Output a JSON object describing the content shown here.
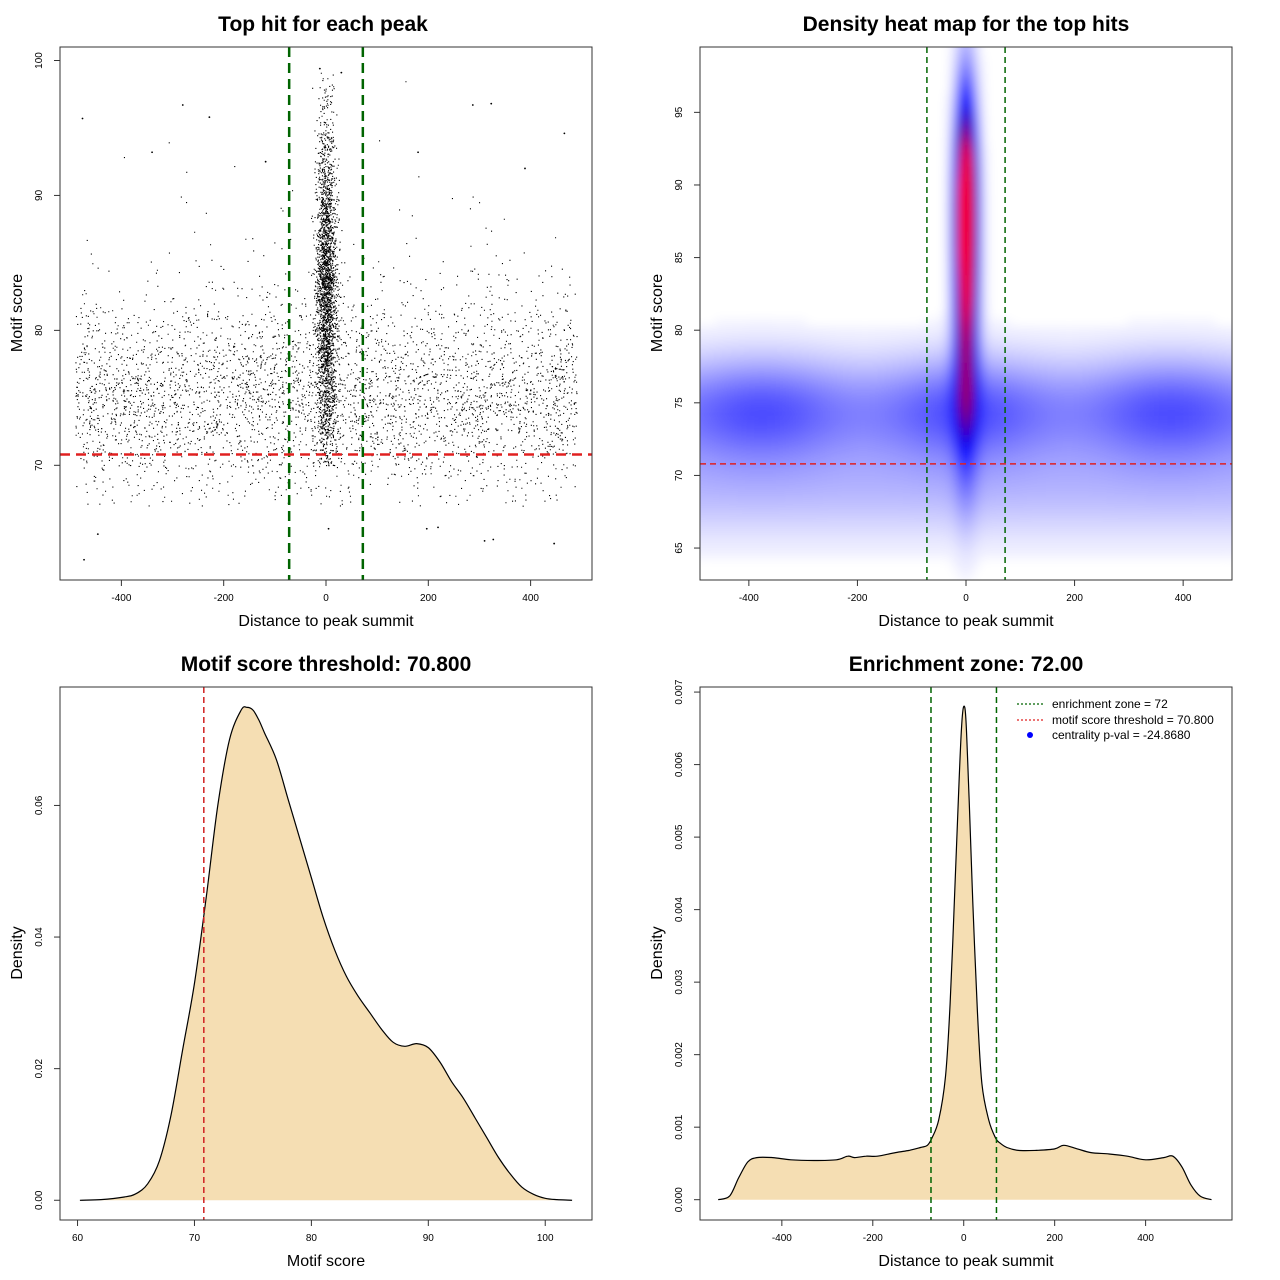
{
  "chart_data": [
    {
      "type": "scatter",
      "title": "Top hit for each peak",
      "xlabel": "Distance to peak summit",
      "ylabel": "Motif score",
      "xlim": [
        -520,
        520
      ],
      "ylim": [
        61.5,
        101
      ],
      "xticks": [
        -400,
        -200,
        0,
        200,
        400
      ],
      "yticks": [
        70,
        80,
        90,
        100
      ],
      "vlines": [
        -72,
        72
      ],
      "hline": 70.8,
      "colors": {
        "points": "#000000",
        "vlines": "#006400",
        "hline": "#e02020"
      },
      "point_model": {
        "background": {
          "n": 9000,
          "x_range": [
            -490,
            490
          ],
          "mean": 75,
          "sd": 3.6,
          "min": 67
        },
        "central": {
          "n": 5500,
          "x_sd": 10,
          "mean": 83,
          "sd": 6,
          "min": 70,
          "max": 99.3
        },
        "outliers": [
          {
            "x": -476,
            "y": 95.7
          },
          {
            "x": -280,
            "y": 96.7
          },
          {
            "x": -228,
            "y": 95.8
          },
          {
            "x": 287,
            "y": 96.7
          },
          {
            "x": 323,
            "y": 96.8
          },
          {
            "x": 466,
            "y": 94.6
          },
          {
            "x": -473,
            "y": 63.0
          },
          {
            "x": 197,
            "y": 65.3
          },
          {
            "x": 219,
            "y": 65.4
          },
          {
            "x": 310,
            "y": 64.4
          },
          {
            "x": 327,
            "y": 64.5
          },
          {
            "x": 446,
            "y": 64.2
          },
          {
            "x": -446,
            "y": 64.9
          },
          {
            "x": 30,
            "y": 99.1
          },
          {
            "x": -12,
            "y": 99.4
          },
          {
            "x": 5,
            "y": 65.3
          },
          {
            "x": -118,
            "y": 92.5
          },
          {
            "x": 180,
            "y": 93.2
          },
          {
            "x": -340,
            "y": 93.2
          },
          {
            "x": 389,
            "y": 92.0
          }
        ]
      }
    },
    {
      "type": "heatmap",
      "title": "Density heat map for the top hits",
      "xlabel": "Distance to peak summit",
      "ylabel": "Motif score",
      "xlim": [
        -490,
        490
      ],
      "ylim": [
        62.8,
        99.5
      ],
      "xticks": [
        -400,
        -200,
        0,
        200,
        400
      ],
      "yticks": [
        65,
        70,
        75,
        80,
        85,
        90,
        95
      ],
      "vlines": [
        -72,
        72
      ],
      "hline": 70.8,
      "colors": {
        "low": "#ffffff",
        "mid": "#0000ff",
        "high": "#ff0000",
        "vlines": "#006400",
        "hline": "#e02020"
      }
    },
    {
      "type": "area",
      "title": "Motif score threshold: 70.800",
      "xlabel": "Motif score",
      "ylabel": "Density",
      "xlim": [
        58.5,
        104
      ],
      "ylim": [
        -0.003,
        0.078
      ],
      "xticks": [
        60,
        70,
        80,
        90,
        100
      ],
      "yticks": [
        0.0,
        0.02,
        0.04,
        0.06
      ],
      "ytick_labels": [
        "0.00",
        "0.02",
        "0.04",
        "0.06"
      ],
      "vline": 70.8,
      "x": [
        60.2,
        62,
        64,
        65,
        66,
        67,
        68,
        69,
        70,
        71,
        72,
        73,
        74,
        74.5,
        75,
        75.5,
        76,
        77,
        78,
        79,
        80,
        81,
        82,
        83,
        84,
        85,
        86,
        87,
        88,
        89,
        90,
        91,
        92,
        93,
        94,
        95,
        96,
        97,
        98,
        99,
        100,
        101,
        102.3
      ],
      "values": [
        0.0,
        0.0001,
        0.0005,
        0.001,
        0.0025,
        0.006,
        0.013,
        0.023,
        0.033,
        0.046,
        0.06,
        0.07,
        0.0745,
        0.0749,
        0.0745,
        0.073,
        0.071,
        0.067,
        0.061,
        0.055,
        0.049,
        0.043,
        0.038,
        0.034,
        0.031,
        0.0285,
        0.026,
        0.024,
        0.0234,
        0.0238,
        0.0232,
        0.021,
        0.018,
        0.0155,
        0.0125,
        0.0095,
        0.0065,
        0.004,
        0.002,
        0.0009,
        0.0003,
        0.0001,
        0.0
      ],
      "colors": {
        "fill": "#f5deb3",
        "line": "#000000",
        "vline": "#d02020"
      }
    },
    {
      "type": "area",
      "title": "Enrichment zone: 72.00",
      "xlabel": "Distance to peak summit",
      "ylabel": "Density",
      "xlim": [
        -580,
        590
      ],
      "ylim": [
        -0.00028,
        0.00707
      ],
      "xticks": [
        -400,
        -200,
        0,
        200,
        400
      ],
      "yticks": [
        0,
        0.001,
        0.002,
        0.003,
        0.004,
        0.005,
        0.006,
        0.007
      ],
      "ytick_labels": [
        "0.000",
        "0.001",
        "0.002",
        "0.003",
        "0.004",
        "0.005",
        "0.006",
        "0.007"
      ],
      "vlines": [
        -72,
        72
      ],
      "x": [
        -540,
        -515,
        -495,
        -475,
        -455,
        -420,
        -380,
        -330,
        -280,
        -255,
        -240,
        -215,
        -190,
        -150,
        -120,
        -95,
        -80,
        -70,
        -55,
        -40,
        -30,
        -20,
        -12,
        -5,
        0,
        5,
        12,
        20,
        30,
        40,
        55,
        70,
        80,
        95,
        120,
        160,
        200,
        220,
        250,
        280,
        320,
        360,
        400,
        440,
        460,
        480,
        500,
        520,
        545
      ],
      "values": [
        0.0,
        5e-05,
        0.0003,
        0.00052,
        0.00058,
        0.00058,
        0.00055,
        0.00054,
        0.00055,
        0.0006,
        0.00058,
        0.0006,
        0.0006,
        0.00065,
        0.00068,
        0.00072,
        0.00075,
        0.00085,
        0.0011,
        0.0017,
        0.0027,
        0.0042,
        0.0055,
        0.0065,
        0.0068,
        0.0066,
        0.0055,
        0.0041,
        0.0026,
        0.0016,
        0.0011,
        0.00085,
        0.00078,
        0.00072,
        0.00068,
        0.00068,
        0.0007,
        0.00075,
        0.0007,
        0.00065,
        0.00063,
        0.0006,
        0.00055,
        0.00058,
        0.0006,
        0.00045,
        0.0002,
        5e-05,
        0.0
      ],
      "legend": [
        {
          "label": "enrichment zone = 72",
          "style": "dotted",
          "color": "#006400"
        },
        {
          "label": "motif score threshold = 70.800",
          "style": "dotted",
          "color": "#e02020"
        },
        {
          "label": "centrality p-val = -24.8680",
          "style": "point",
          "color": "#0000ff"
        }
      ],
      "colors": {
        "fill": "#f5deb3",
        "line": "#000000",
        "vlines": "#006400"
      }
    }
  ]
}
